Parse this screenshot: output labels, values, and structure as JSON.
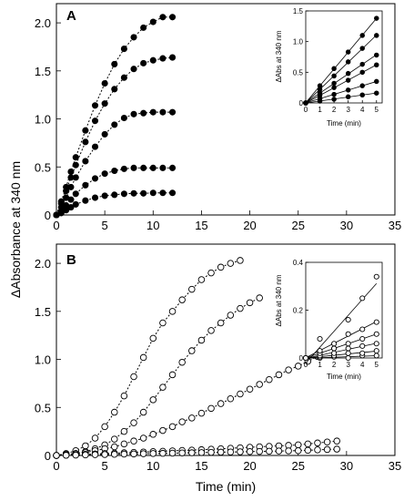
{
  "chart_data": [
    {
      "type": "scatter",
      "panel_label": "A",
      "xlabel": "",
      "ylabel": "",
      "xlim": [
        0,
        35
      ],
      "ylim": [
        0,
        2.2
      ],
      "xticks": [
        "0",
        "5",
        "10",
        "15",
        "20",
        "25",
        "30",
        "35"
      ],
      "yticks": [
        "0",
        "0.5",
        "1.0",
        "1.5",
        "2.0"
      ],
      "marker": "filled-circle",
      "line_style": "dotted",
      "series": [
        {
          "x": [
            0,
            0.5,
            1,
            1.5,
            2,
            3,
            4,
            5,
            6,
            7,
            8,
            9,
            10,
            11,
            12
          ],
          "y": [
            0,
            0.02,
            0.05,
            0.08,
            0.11,
            0.15,
            0.18,
            0.2,
            0.21,
            0.22,
            0.225,
            0.225,
            0.23,
            0.23,
            0.23
          ]
        },
        {
          "x": [
            0,
            0.5,
            1,
            1.5,
            2,
            3,
            4,
            5,
            6,
            7,
            8,
            9,
            10,
            11,
            12
          ],
          "y": [
            0,
            0.04,
            0.1,
            0.16,
            0.22,
            0.31,
            0.38,
            0.43,
            0.46,
            0.48,
            0.49,
            0.49,
            0.49,
            0.49,
            0.49
          ]
        },
        {
          "x": [
            0,
            0.5,
            1,
            1.5,
            2,
            3,
            4,
            5,
            6,
            7,
            8,
            9,
            10,
            11,
            12
          ],
          "y": [
            0,
            0.08,
            0.18,
            0.29,
            0.39,
            0.56,
            0.71,
            0.84,
            0.94,
            1.01,
            1.05,
            1.06,
            1.07,
            1.07,
            1.07
          ]
        },
        {
          "x": [
            0,
            0.5,
            1,
            1.5,
            2,
            3,
            4,
            5,
            6,
            7,
            8,
            9,
            10,
            11,
            12
          ],
          "y": [
            0,
            0.12,
            0.25,
            0.39,
            0.52,
            0.76,
            0.98,
            1.16,
            1.31,
            1.43,
            1.52,
            1.58,
            1.61,
            1.63,
            1.64
          ]
        },
        {
          "x": [
            0,
            0.5,
            1,
            1.5,
            2,
            3,
            4,
            5,
            6,
            7,
            8,
            9,
            10,
            11,
            12
          ],
          "y": [
            0,
            0.14,
            0.29,
            0.45,
            0.6,
            0.88,
            1.14,
            1.37,
            1.57,
            1.73,
            1.85,
            1.95,
            2.01,
            2.06,
            2.06
          ]
        }
      ],
      "inset": {
        "type": "scatter",
        "xlabel": "Time (min)",
        "ylabel": "ΔAbs at 340 nm",
        "xlim": [
          0,
          5.4
        ],
        "ylim": [
          0,
          1.5
        ],
        "xticks": [
          "0",
          "1",
          "2",
          "3",
          "4",
          "5"
        ],
        "yticks": [
          "0",
          "0.5",
          "1.0",
          "1.5"
        ],
        "marker": "filled-circle",
        "line_style": "solid",
        "series": [
          {
            "x": [
              0,
              1,
              2,
              3,
              4,
              5
            ],
            "y": [
              0,
              0.03,
              0.06,
              0.1,
              0.13,
              0.16
            ]
          },
          {
            "x": [
              0,
              1,
              2,
              3,
              4,
              5
            ],
            "y": [
              0,
              0.07,
              0.14,
              0.21,
              0.28,
              0.35
            ]
          },
          {
            "x": [
              0,
              1,
              2,
              3,
              4,
              5
            ],
            "y": [
              0,
              0.12,
              0.25,
              0.37,
              0.5,
              0.62
            ]
          },
          {
            "x": [
              0,
              1,
              2,
              3,
              4,
              5
            ],
            "y": [
              0,
              0.16,
              0.32,
              0.48,
              0.63,
              0.78
            ]
          },
          {
            "x": [
              0,
              1,
              2,
              3,
              4,
              5
            ],
            "y": [
              0,
              0.22,
              0.44,
              0.67,
              0.89,
              1.1
            ]
          },
          {
            "x": [
              0,
              1,
              2,
              3,
              4,
              5
            ],
            "y": [
              0,
              0.28,
              0.56,
              0.83,
              1.1,
              1.38
            ]
          }
        ]
      }
    },
    {
      "type": "scatter",
      "panel_label": "B",
      "xlabel": "Time (min)",
      "ylabel": "ΔAbsorbance at 340 nm",
      "xlim": [
        0,
        35
      ],
      "ylim": [
        0,
        2.2
      ],
      "xticks": [
        "0",
        "5",
        "10",
        "15",
        "20",
        "25",
        "30",
        "35"
      ],
      "yticks": [
        "0",
        "0.5",
        "1.0",
        "1.5",
        "2.0"
      ],
      "marker": "open-circle",
      "line_style": "dotted",
      "series": [
        {
          "x": [
            0,
            1,
            2,
            3,
            4,
            5,
            6,
            7,
            8,
            9,
            10,
            11,
            12,
            13,
            14,
            15,
            16,
            17,
            18,
            19
          ],
          "y": [
            0,
            0.02,
            0.05,
            0.1,
            0.18,
            0.3,
            0.45,
            0.62,
            0.82,
            1.02,
            1.22,
            1.38,
            1.5,
            1.62,
            1.73,
            1.83,
            1.9,
            1.96,
            2.0,
            2.03
          ]
        },
        {
          "x": [
            0,
            1,
            2,
            3,
            4,
            5,
            6,
            7,
            8,
            9,
            10,
            11,
            12,
            13,
            14,
            15,
            16,
            17,
            18,
            19,
            20,
            21
          ],
          "y": [
            0,
            0.01,
            0.02,
            0.04,
            0.07,
            0.11,
            0.17,
            0.25,
            0.34,
            0.45,
            0.58,
            0.71,
            0.84,
            0.97,
            1.09,
            1.2,
            1.3,
            1.38,
            1.46,
            1.53,
            1.59,
            1.64
          ]
        },
        {
          "x": [
            0,
            1,
            2,
            3,
            4,
            5,
            6,
            7,
            8,
            9,
            10,
            11,
            12,
            13,
            14,
            15,
            16,
            17,
            18,
            19,
            20,
            21,
            22,
            23,
            24,
            25,
            26,
            27,
            28,
            29
          ],
          "y": [
            0,
            0.01,
            0.02,
            0.03,
            0.05,
            0.07,
            0.09,
            0.12,
            0.15,
            0.18,
            0.22,
            0.26,
            0.3,
            0.35,
            0.39,
            0.44,
            0.49,
            0.54,
            0.59,
            0.64,
            0.69,
            0.74,
            0.79,
            0.84,
            0.89,
            0.93,
            0.98,
            1.03,
            1.07,
            1.11
          ]
        },
        {
          "x": [
            0,
            1,
            2,
            3,
            4,
            5,
            6,
            7,
            8,
            9,
            10,
            11,
            12,
            13,
            14,
            15,
            16,
            17,
            18,
            19,
            20,
            21,
            22,
            23,
            24,
            25,
            26,
            27,
            28,
            29
          ],
          "y": [
            0,
            0.004,
            0.008,
            0.012,
            0.016,
            0.02,
            0.024,
            0.028,
            0.032,
            0.036,
            0.04,
            0.044,
            0.048,
            0.052,
            0.056,
            0.06,
            0.065,
            0.07,
            0.075,
            0.08,
            0.085,
            0.09,
            0.095,
            0.1,
            0.105,
            0.11,
            0.12,
            0.13,
            0.14,
            0.15
          ]
        },
        {
          "x": [
            0,
            1,
            2,
            3,
            4,
            5,
            6,
            7,
            8,
            9,
            10,
            11,
            12,
            13,
            14,
            15,
            16,
            17,
            18,
            19,
            20,
            21,
            22,
            23,
            24,
            25,
            26,
            27,
            28,
            29
          ],
          "y": [
            0,
            0.002,
            0.004,
            0.006,
            0.008,
            0.01,
            0.012,
            0.014,
            0.016,
            0.018,
            0.02,
            0.022,
            0.024,
            0.026,
            0.028,
            0.03,
            0.032,
            0.034,
            0.036,
            0.038,
            0.04,
            0.042,
            0.044,
            0.046,
            0.048,
            0.05,
            0.054,
            0.058,
            0.062,
            0.066
          ]
        }
      ],
      "inset": {
        "type": "scatter",
        "xlabel": "Time (min)",
        "ylabel": "ΔAbs at 340 nm",
        "xlim": [
          0,
          5.4
        ],
        "ylim": [
          0,
          0.4
        ],
        "xticks": [
          "0",
          "1",
          "2",
          "3",
          "4",
          "5"
        ],
        "yticks": [
          "0",
          "0.2",
          "0.4"
        ],
        "marker": "open-circle",
        "line_style": "solid",
        "series": [
          {
            "x": [
              0,
              1,
              2,
              3,
              4,
              5
            ],
            "y": [
              0,
              0.0,
              0.005,
              0.0,
              0.01,
              0.01
            ]
          },
          {
            "x": [
              0,
              1,
              2,
              3,
              4,
              5
            ],
            "y": [
              0,
              0.005,
              0.01,
              0.02,
              0.02,
              0.03
            ]
          },
          {
            "x": [
              0,
              1,
              2,
              3,
              4,
              5
            ],
            "y": [
              0,
              0.01,
              0.02,
              0.04,
              0.05,
              0.06
            ]
          },
          {
            "x": [
              0,
              1,
              2,
              3,
              4,
              5
            ],
            "y": [
              0,
              0.02,
              0.04,
              0.06,
              0.08,
              0.1
            ]
          },
          {
            "x": [
              0,
              1,
              2,
              3,
              4,
              5
            ],
            "y": [
              0,
              0.03,
              0.06,
              0.1,
              0.12,
              0.15
            ]
          },
          {
            "x": [
              0,
              1,
              2,
              3,
              4,
              5
            ],
            "y": [
              0,
              0.08,
              0.04,
              0.16,
              0.25,
              0.34
            ]
          }
        ]
      }
    }
  ]
}
